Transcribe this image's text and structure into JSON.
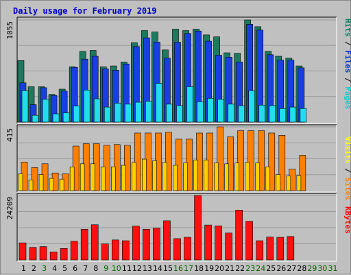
{
  "chart_data": [
    {
      "type": "bar",
      "title": "Daily usage for February 2019",
      "categories": [
        "1",
        "2",
        "3",
        "4",
        "5",
        "6",
        "7",
        "8",
        "9",
        "10",
        "11",
        "12",
        "13",
        "14",
        "15",
        "16",
        "17",
        "18",
        "19",
        "20",
        "21",
        "22",
        "23",
        "24",
        "25",
        "26",
        "27",
        "28",
        "29",
        "30",
        "31"
      ],
      "category_colors": [
        "#000000",
        "#000000",
        "#006600",
        "#000000",
        "#000000",
        "#000000",
        "#000000",
        "#000000",
        "#006600",
        "#006600",
        "#000000",
        "#000000",
        "#000000",
        "#000000",
        "#000000",
        "#006600",
        "#006600",
        "#000000",
        "#000000",
        "#000000",
        "#000000",
        "#000000",
        "#006600",
        "#006600",
        "#000000",
        "#000000",
        "#000000",
        "#000000",
        "#006600",
        "#006600",
        "#006600"
      ],
      "ymax_label": "1055",
      "legend": [
        {
          "text": "Pages",
          "color": "#00cccc"
        },
        {
          "text": " / ",
          "color": "#000000"
        },
        {
          "text": "Files",
          "color": "#0033cc"
        },
        {
          "text": " / ",
          "color": "#000000"
        },
        {
          "text": "Hits",
          "color": "#008060"
        }
      ],
      "series": [
        {
          "name": "Hits",
          "color": "#1e7a5e",
          "values": [
            635,
            365,
            365,
            285,
            340,
            570,
            730,
            740,
            570,
            580,
            620,
            820,
            945,
            930,
            745,
            960,
            945,
            960,
            900,
            880,
            715,
            710,
            1055,
            985,
            730,
            680,
            660,
            580,
            0,
            0,
            0
          ]
        },
        {
          "name": "Files",
          "color": "#1840e0",
          "values": [
            405,
            180,
            355,
            275,
            320,
            565,
            650,
            680,
            550,
            535,
            600,
            780,
            870,
            825,
            660,
            825,
            915,
            940,
            835,
            690,
            670,
            620,
            1010,
            950,
            695,
            640,
            640,
            560,
            0,
            0,
            0
          ]
        },
        {
          "name": "Pages",
          "color": "#22ddee",
          "values": [
            325,
            70,
            235,
            85,
            95,
            165,
            330,
            240,
            155,
            195,
            185,
            205,
            215,
            400,
            185,
            170,
            365,
            210,
            245,
            235,
            185,
            170,
            325,
            175,
            170,
            140,
            155,
            140,
            0,
            0,
            0
          ]
        }
      ]
    },
    {
      "type": "bar",
      "ymax_label": "415",
      "legend": [
        {
          "text": "Sites",
          "color": "#ff8000"
        },
        {
          "text": " / ",
          "color": "#000000"
        },
        {
          "text": "Visits",
          "color": "#ffff00"
        }
      ],
      "series": [
        {
          "name": "Sites",
          "color": "#ff8000",
          "values": [
            185,
            150,
            175,
            115,
            110,
            290,
            305,
            305,
            295,
            300,
            295,
            375,
            375,
            375,
            380,
            335,
            335,
            375,
            375,
            415,
            350,
            390,
            390,
            390,
            375,
            360,
            140,
            230,
            0,
            0,
            0
          ]
        },
        {
          "name": "Visits",
          "color": "#ffd000",
          "values": [
            110,
            70,
            105,
            80,
            75,
            155,
            175,
            175,
            155,
            155,
            165,
            185,
            205,
            195,
            185,
            165,
            180,
            200,
            200,
            180,
            175,
            180,
            185,
            180,
            155,
            105,
            95,
            100,
            0,
            0,
            0
          ]
        }
      ]
    },
    {
      "type": "bar",
      "ymax_label": "24209",
      "legend": [
        {
          "text": "KBytes",
          "color": "#ff0000"
        }
      ],
      "series": [
        {
          "name": "KBytes",
          "color": "#ff1010",
          "values": [
            6400,
            4700,
            5000,
            3000,
            4300,
            7000,
            11500,
            13200,
            6000,
            7500,
            7200,
            12700,
            11500,
            11900,
            14700,
            8000,
            8500,
            24209,
            13100,
            12800,
            10100,
            18700,
            14500,
            7200,
            8600,
            8500,
            8800,
            0,
            0,
            0,
            0
          ]
        }
      ]
    }
  ]
}
